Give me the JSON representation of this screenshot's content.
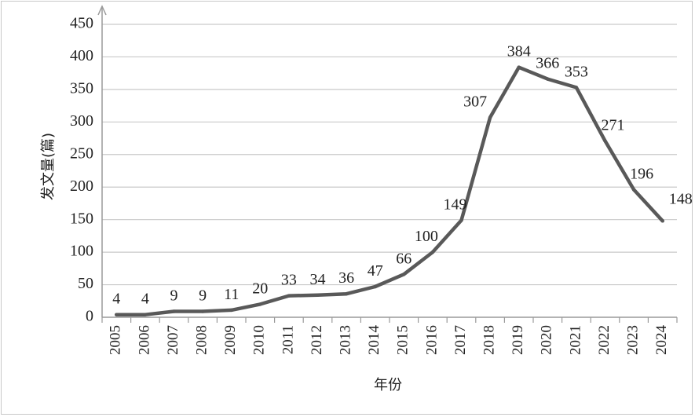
{
  "chart_data": {
    "type": "line",
    "title": "",
    "xlabel": "年份",
    "ylabel": "发文量(篇)",
    "ylim": [
      0,
      450
    ],
    "yticks": [
      0,
      50,
      100,
      150,
      200,
      250,
      300,
      350,
      400,
      450
    ],
    "categories": [
      "2005",
      "2006",
      "2007",
      "2008",
      "2009",
      "2010",
      "2011",
      "2012",
      "2013",
      "2014",
      "2015",
      "2016",
      "2017",
      "2018",
      "2019",
      "2020",
      "2021",
      "2022",
      "2023",
      "2024"
    ],
    "values": [
      4,
      4,
      9,
      9,
      11,
      20,
      33,
      34,
      36,
      47,
      66,
      100,
      149,
      307,
      384,
      366,
      353,
      271,
      196,
      148
    ],
    "data_labels": [
      "4",
      "4",
      "9",
      "9",
      "11",
      "20",
      "33",
      "34",
      "36",
      "47",
      "66",
      "100",
      "149",
      "307",
      "384",
      "366",
      "353",
      "271",
      "196",
      "148"
    ],
    "grid": true,
    "legend": "none",
    "colors": {
      "line": "#595959",
      "grid": "#c9c9c9",
      "axis": "#9a9a9a",
      "text": "#222222"
    }
  }
}
